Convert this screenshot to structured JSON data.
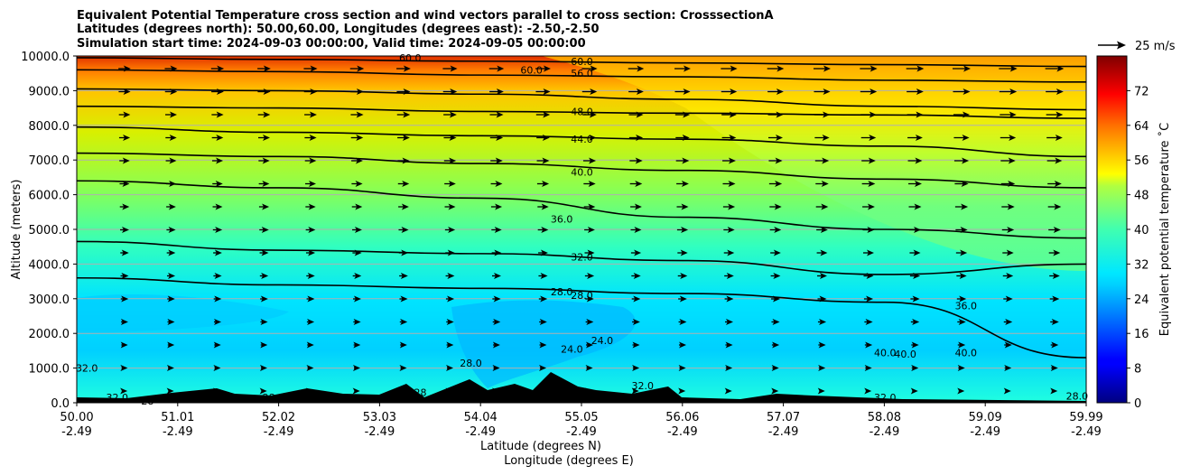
{
  "chart_data": {
    "type": "heatmap",
    "title_lines": [
      "Equivalent Potential Temperature cross section and wind vectors parallel to cross section: CrosssectionA",
      "Latitudes (degrees north): 50.00,60.00, Longitudes (degrees east): -2.50,-2.50",
      "Simulation start time: 2024-09-03 00:00:00, Valid time: 2024-09-05 00:00:00"
    ],
    "xlabel_lines": [
      "Latitude (degrees N)",
      "Longitude (degrees E)"
    ],
    "ylabel": "Altitude (meters)",
    "x_ticks": [
      {
        "lat": "50.00",
        "lon": "-2.49"
      },
      {
        "lat": "51.01",
        "lon": "-2.49"
      },
      {
        "lat": "52.02",
        "lon": "-2.49"
      },
      {
        "lat": "53.03",
        "lon": "-2.49"
      },
      {
        "lat": "54.04",
        "lon": "-2.49"
      },
      {
        "lat": "55.05",
        "lon": "-2.49"
      },
      {
        "lat": "56.06",
        "lon": "-2.49"
      },
      {
        "lat": "57.07",
        "lon": "-2.49"
      },
      {
        "lat": "58.08",
        "lon": "-2.49"
      },
      {
        "lat": "59.09",
        "lon": "-2.49"
      },
      {
        "lat": "59.99",
        "lon": "-2.49"
      }
    ],
    "y_ticks": [
      "0.0",
      "1000.0",
      "2000.0",
      "3000.0",
      "4000.0",
      "5000.0",
      "6000.0",
      "7000.0",
      "8000.0",
      "9000.0",
      "10000.0"
    ],
    "xlim": [
      50.0,
      59.99
    ],
    "ylim": [
      0,
      10000
    ],
    "grid": "horizontal",
    "colorbar": {
      "label": "Equivalent potential temperature ˚C",
      "range": [
        0,
        80
      ],
      "ticks": [
        "0",
        "8",
        "16",
        "24",
        "32",
        "40",
        "48",
        "56",
        "64",
        "72"
      ]
    },
    "quiver_key": {
      "label": "25 m/s",
      "placement": "top-right"
    },
    "contour_labels": [
      {
        "text": "60.0",
        "lat": 53.3,
        "alt": 9950
      },
      {
        "text": "60.0",
        "lat": 54.5,
        "alt": 9600
      },
      {
        "text": "60.0",
        "lat": 55.0,
        "alt": 9850
      },
      {
        "text": "56.0",
        "lat": 55.0,
        "alt": 9500
      },
      {
        "text": "48.0",
        "lat": 55.0,
        "alt": 8400
      },
      {
        "text": "44.0",
        "lat": 55.0,
        "alt": 7600
      },
      {
        "text": "40.0",
        "lat": 55.0,
        "alt": 6650
      },
      {
        "text": "36.0",
        "lat": 54.8,
        "alt": 5300
      },
      {
        "text": "32.0",
        "lat": 55.0,
        "alt": 4200
      },
      {
        "text": "28.0",
        "lat": 54.8,
        "alt": 3200
      },
      {
        "text": "28.0",
        "lat": 55.0,
        "alt": 3100
      },
      {
        "text": "24.0",
        "lat": 54.9,
        "alt": 1550
      },
      {
        "text": "24.0",
        "lat": 55.2,
        "alt": 1800
      },
      {
        "text": "28.0",
        "lat": 53.9,
        "alt": 1150
      },
      {
        "text": "32.0",
        "lat": 50.1,
        "alt": 1000
      },
      {
        "text": "36.0",
        "lat": 58.8,
        "alt": 2800
      },
      {
        "text": "40.0",
        "lat": 58.0,
        "alt": 1450
      },
      {
        "text": "40.0",
        "lat": 58.2,
        "alt": 1400
      },
      {
        "text": "40.0",
        "lat": 58.8,
        "alt": 1450
      },
      {
        "text": "32.0",
        "lat": 55.6,
        "alt": 500
      },
      {
        "text": "32.0",
        "lat": 58.0,
        "alt": 150
      },
      {
        "text": "32.0",
        "lat": 50.4,
        "alt": 150
      },
      {
        "text": "28",
        "lat": 50.7,
        "alt": 50
      },
      {
        "text": "28",
        "lat": 51.9,
        "alt": 150
      },
      {
        "text": "28",
        "lat": 52.1,
        "alt": 150
      },
      {
        "text": "28",
        "lat": 52.6,
        "alt": 150
      },
      {
        "text": "24.0",
        "lat": 53.3,
        "alt": 100
      },
      {
        "text": "28",
        "lat": 53.4,
        "alt": 300
      },
      {
        "text": "28",
        "lat": 53.9,
        "alt": 300
      },
      {
        "text": "28.0",
        "lat": 59.9,
        "alt": 200
      }
    ],
    "isotherms": [
      {
        "level": 60,
        "alt": [
          9950,
          9900,
          9850,
          9800,
          9750,
          9700
        ]
      },
      {
        "level": 56,
        "alt": [
          9600,
          9550,
          9450,
          9400,
          9300,
          9250
        ]
      },
      {
        "level": 52,
        "alt": [
          9050,
          9000,
          8900,
          8750,
          8550,
          8450
        ]
      },
      {
        "level": 48,
        "alt": [
          8550,
          8500,
          8400,
          8350,
          8300,
          8200
        ]
      },
      {
        "level": 44,
        "alt": [
          7950,
          7800,
          7700,
          7600,
          7400,
          7100
        ]
      },
      {
        "level": 40,
        "alt": [
          7200,
          7100,
          6900,
          6700,
          6450,
          6200
        ]
      },
      {
        "level": 36,
        "alt": [
          6400,
          6200,
          5900,
          5350,
          5000,
          4750
        ]
      },
      {
        "level": 32,
        "alt": [
          4650,
          4400,
          4300,
          4100,
          3700,
          4000
        ]
      },
      {
        "level": 28,
        "alt": [
          3600,
          3400,
          3300,
          3150,
          2900,
          1300
        ]
      }
    ],
    "isotherm_lats": [
      50.0,
      52.0,
      54.0,
      56.0,
      58.0,
      59.99
    ]
  }
}
